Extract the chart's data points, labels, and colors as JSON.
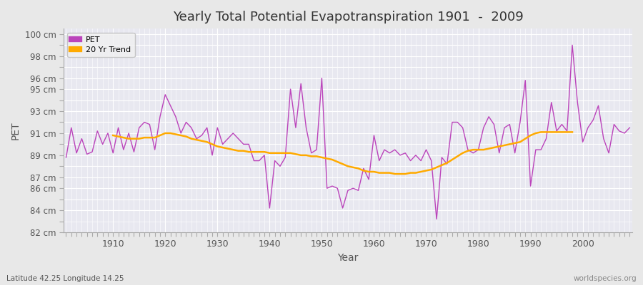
{
  "title": "Yearly Total Potential Evapotranspiration 1901  -  2009",
  "xlabel": "Year",
  "ylabel": "PET",
  "footnote_left": "Latitude 42.25 Longitude 14.25",
  "footnote_right": "worldspecies.org",
  "pet_color": "#bb44bb",
  "trend_color": "#ffaa00",
  "fig_bg_color": "#e8e8e8",
  "plot_bg_color": "#e8e8f0",
  "grid_color": "#ffffff",
  "ylim": [
    82,
    100.5
  ],
  "xlim": [
    1900.5,
    2009.5
  ],
  "ytick_positions": [
    82,
    84,
    85,
    86,
    87,
    88,
    89,
    90,
    91,
    92,
    93,
    94,
    95,
    96,
    97,
    98,
    99,
    100
  ],
  "ytick_shown": [
    82,
    84,
    86,
    87,
    89,
    91,
    93,
    95,
    96,
    98,
    100
  ],
  "xtick_positions": [
    1910,
    1920,
    1930,
    1940,
    1950,
    1960,
    1970,
    1980,
    1990,
    2000
  ],
  "years": [
    1901,
    1902,
    1903,
    1904,
    1905,
    1906,
    1907,
    1908,
    1909,
    1910,
    1911,
    1912,
    1913,
    1914,
    1915,
    1916,
    1917,
    1918,
    1919,
    1920,
    1921,
    1922,
    1923,
    1924,
    1925,
    1926,
    1927,
    1928,
    1929,
    1930,
    1931,
    1932,
    1933,
    1934,
    1935,
    1936,
    1937,
    1938,
    1939,
    1940,
    1941,
    1942,
    1943,
    1944,
    1945,
    1946,
    1947,
    1948,
    1949,
    1950,
    1951,
    1952,
    1953,
    1954,
    1955,
    1956,
    1957,
    1958,
    1959,
    1960,
    1961,
    1962,
    1963,
    1964,
    1965,
    1966,
    1967,
    1968,
    1969,
    1970,
    1971,
    1972,
    1973,
    1974,
    1975,
    1976,
    1977,
    1978,
    1979,
    1980,
    1981,
    1982,
    1983,
    1984,
    1985,
    1986,
    1987,
    1988,
    1989,
    1990,
    1991,
    1992,
    1993,
    1994,
    1995,
    1996,
    1997,
    1998,
    1999,
    2000,
    2001,
    2002,
    2003,
    2004,
    2005,
    2006,
    2007,
    2008,
    2009
  ],
  "pet": [
    88.8,
    91.5,
    89.2,
    90.5,
    89.1,
    89.3,
    91.2,
    90.0,
    91.0,
    89.2,
    91.5,
    89.5,
    91.0,
    89.3,
    91.5,
    92.0,
    91.8,
    89.5,
    92.5,
    94.5,
    93.5,
    92.5,
    91.0,
    92.0,
    91.5,
    90.5,
    90.8,
    91.5,
    89.0,
    91.5,
    90.0,
    90.5,
    91.0,
    90.5,
    90.0,
    90.0,
    88.5,
    88.5,
    89.0,
    84.2,
    88.5,
    88.0,
    88.8,
    95.0,
    91.5,
    95.5,
    91.5,
    89.2,
    89.5,
    96.0,
    86.0,
    86.2,
    86.0,
    84.2,
    85.8,
    86.0,
    85.8,
    87.8,
    86.8,
    90.8,
    88.5,
    89.5,
    89.2,
    89.5,
    89.0,
    89.2,
    88.5,
    89.0,
    88.5,
    89.5,
    88.5,
    83.2,
    88.8,
    88.2,
    92.0,
    92.0,
    91.5,
    89.5,
    89.2,
    89.5,
    91.5,
    92.5,
    91.8,
    89.2,
    91.5,
    91.8,
    89.2,
    92.0,
    95.8,
    86.2,
    89.5,
    89.5,
    90.5,
    93.8,
    91.2,
    91.8,
    91.2,
    99.0,
    93.8,
    90.2,
    91.5,
    92.2,
    93.5,
    90.5,
    89.2,
    91.8,
    91.2,
    91.0,
    91.5
  ],
  "trend": [
    null,
    null,
    null,
    null,
    null,
    null,
    null,
    null,
    null,
    90.8,
    90.7,
    90.6,
    90.5,
    90.5,
    90.5,
    90.6,
    90.6,
    90.6,
    90.8,
    91.0,
    91.0,
    90.9,
    90.8,
    90.7,
    90.5,
    90.4,
    90.3,
    90.2,
    90.0,
    89.8,
    89.7,
    89.6,
    89.5,
    89.4,
    89.4,
    89.3,
    89.3,
    89.3,
    89.3,
    89.2,
    89.2,
    89.2,
    89.2,
    89.2,
    89.1,
    89.0,
    89.0,
    88.9,
    88.9,
    88.8,
    88.7,
    88.6,
    88.4,
    88.2,
    88.0,
    87.9,
    87.8,
    87.6,
    87.5,
    87.5,
    87.4,
    87.4,
    87.4,
    87.3,
    87.3,
    87.3,
    87.4,
    87.4,
    87.5,
    87.6,
    87.7,
    87.9,
    88.1,
    88.3,
    88.6,
    88.9,
    89.2,
    89.4,
    89.5,
    89.5,
    89.5,
    89.6,
    89.7,
    89.8,
    89.9,
    90.0,
    90.1,
    90.2,
    90.5,
    90.8,
    91.0,
    91.1,
    91.1,
    91.1,
    91.1,
    91.1,
    91.1,
    91.1,
    null,
    null,
    null,
    null,
    null,
    null,
    null,
    null,
    null
  ]
}
